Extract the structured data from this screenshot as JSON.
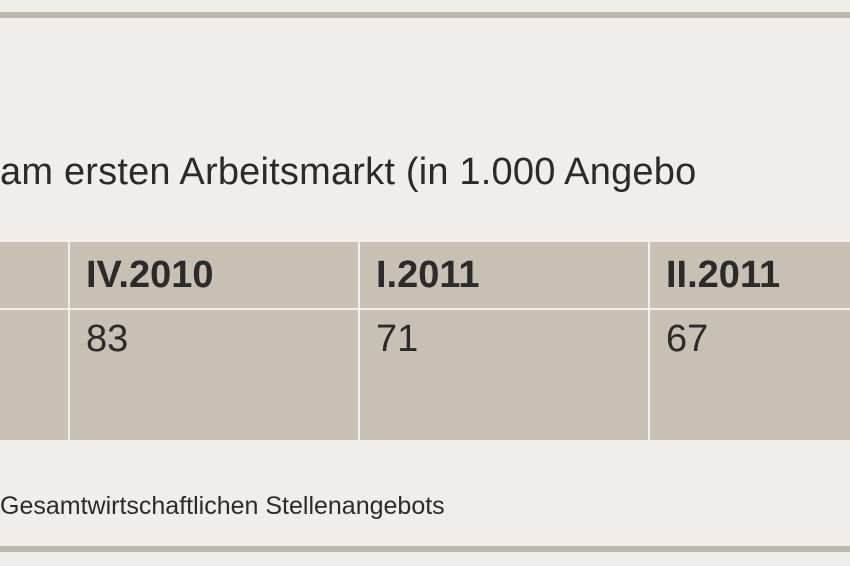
{
  "title": "am ersten Arbeitsmarkt (in 1.000 Angebo",
  "table": {
    "headers": [
      "",
      "IV.2010",
      "I.2011",
      "II.2011"
    ],
    "values": [
      "",
      "83",
      "71",
      "67"
    ]
  },
  "footnote": "Gesamtwirtschaftlichen Stellenangebots",
  "colors": {
    "background": "#f0eeea",
    "rule": "#bdb7ae",
    "cell": "#c8c0b3",
    "text": "#2b2b2b"
  }
}
